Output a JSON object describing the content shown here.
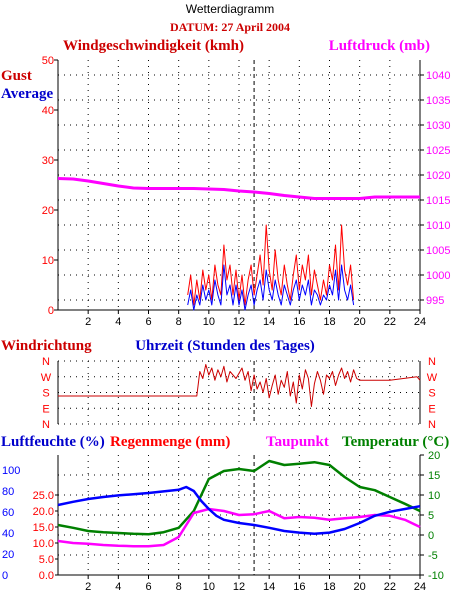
{
  "header": {
    "title": "Wetterdiagramm",
    "date": "DATUM: 27 April 2004"
  },
  "colors": {
    "red": "#ff0000",
    "blue": "#0000ff",
    "magenta": "#ff00ff",
    "green": "#008000",
    "darkred": "#cc0000",
    "axis": "#000000"
  },
  "chart_data": [
    {
      "type": "line",
      "title": "Windgeschwindigkeit (kmh)",
      "right_title": "Luftdruck (mb)",
      "legend": [
        "Gust",
        "Average"
      ],
      "xlabel": "",
      "x_range": [
        0,
        24
      ],
      "x_ticks": [
        "2",
        "4",
        "6",
        "8",
        "10",
        "12",
        "14",
        "16",
        "18",
        "20",
        "22",
        "24"
      ],
      "ylim": [
        0,
        50
      ],
      "y_ticks": [
        "0",
        "10",
        "20",
        "30",
        "40",
        "50"
      ],
      "y2lim": [
        993,
        1043
      ],
      "y2_ticks": [
        "995",
        "1000",
        "1005",
        "1010",
        "1015",
        "1020",
        "1025",
        "1030",
        "1035",
        "1040"
      ],
      "grid": "dotted",
      "marker_x": 13,
      "series": [
        {
          "name": "Gust",
          "axis": "left",
          "x": [
            8.6,
            8.8,
            9.0,
            9.2,
            9.4,
            9.6,
            9.8,
            10.0,
            10.2,
            10.4,
            10.6,
            10.8,
            11.0,
            11.2,
            11.4,
            11.6,
            11.8,
            12.0,
            12.2,
            12.4,
            12.6,
            12.8,
            13.0,
            13.2,
            13.4,
            13.6,
            13.8,
            14.0,
            14.2,
            14.4,
            14.6,
            14.8,
            15.0,
            15.2,
            15.4,
            15.6,
            15.8,
            16.0,
            16.2,
            16.4,
            16.6,
            16.8,
            17.0,
            17.2,
            17.4,
            17.6,
            17.8,
            18.0,
            18.2,
            18.4,
            18.6,
            18.8,
            19.0,
            19.2,
            19.4,
            19.6
          ],
          "values": [
            3,
            7,
            1,
            6,
            2,
            8,
            4,
            7,
            2,
            9,
            5,
            3,
            13,
            6,
            9,
            3,
            8,
            2,
            7,
            1,
            6,
            9,
            3,
            7,
            11,
            5,
            17,
            8,
            4,
            12,
            6,
            3,
            9,
            5,
            2,
            7,
            11,
            4,
            9,
            6,
            11,
            3,
            8,
            5,
            2,
            6,
            3,
            9,
            6,
            13,
            4,
            17,
            8,
            5,
            9,
            2
          ]
        },
        {
          "name": "Average",
          "axis": "left",
          "x": [
            8.6,
            8.8,
            9.0,
            9.2,
            9.4,
            9.6,
            9.8,
            10.0,
            10.2,
            10.4,
            10.6,
            10.8,
            11.0,
            11.2,
            11.4,
            11.6,
            11.8,
            12.0,
            12.2,
            12.4,
            12.6,
            12.8,
            13.0,
            13.2,
            13.4,
            13.6,
            13.8,
            14.0,
            14.2,
            14.4,
            14.6,
            14.8,
            15.0,
            15.2,
            15.4,
            15.6,
            15.8,
            16.0,
            16.2,
            16.4,
            16.6,
            16.8,
            17.0,
            17.2,
            17.4,
            17.6,
            17.8,
            18.0,
            18.2,
            18.4,
            18.6,
            18.8,
            19.0,
            19.2,
            19.4,
            19.6
          ],
          "values": [
            1,
            4,
            0,
            3,
            1,
            5,
            2,
            4,
            1,
            6,
            3,
            1,
            9,
            3,
            5,
            1,
            5,
            1,
            4,
            0,
            3,
            5,
            1,
            4,
            6,
            2,
            8,
            4,
            2,
            6,
            3,
            1,
            5,
            3,
            1,
            4,
            6,
            2,
            5,
            3,
            6,
            1,
            4,
            3,
            1,
            3,
            2,
            5,
            3,
            8,
            2,
            9,
            4,
            2,
            5,
            1
          ]
        },
        {
          "name": "Luftdruck",
          "axis": "right",
          "x": [
            0,
            1,
            2,
            3,
            4,
            5,
            6,
            7,
            8,
            9,
            10,
            11,
            12,
            13,
            14,
            15,
            16,
            17,
            18,
            19,
            20,
            21,
            22,
            23,
            24
          ],
          "values": [
            1019.3,
            1019.2,
            1018.8,
            1018.3,
            1017.8,
            1017.4,
            1017.3,
            1017.3,
            1017.3,
            1017.3,
            1017.2,
            1017.1,
            1016.8,
            1016.6,
            1016.3,
            1015.9,
            1015.6,
            1015.3,
            1015.3,
            1015.3,
            1015.3,
            1015.6,
            1015.6,
            1015.6,
            1015.6
          ]
        }
      ]
    },
    {
      "type": "line",
      "title": "Windrichtung",
      "xlabel": "Uhrzeit (Stunden des Tages)",
      "x_range": [
        0,
        24
      ],
      "y_categories": [
        "N",
        "E",
        "S",
        "W",
        "N"
      ],
      "y_values_deg": [
        0,
        90,
        180,
        270,
        360
      ],
      "grid": "dotted",
      "marker_x": 13,
      "series": [
        {
          "name": "Windrichtung",
          "x": [
            0,
            9.2,
            9.4,
            9.6,
            9.8,
            10.0,
            10.2,
            10.4,
            10.6,
            10.8,
            11.0,
            11.2,
            11.4,
            11.6,
            11.8,
            12.0,
            12.2,
            12.4,
            12.6,
            12.8,
            13.0,
            13.2,
            13.4,
            13.6,
            13.8,
            14.0,
            14.2,
            14.4,
            14.6,
            14.8,
            15.0,
            15.2,
            15.4,
            15.6,
            15.8,
            16.0,
            16.2,
            16.4,
            16.6,
            16.8,
            17.0,
            17.2,
            17.4,
            17.6,
            17.8,
            18.0,
            18.2,
            18.4,
            18.6,
            18.8,
            19.0,
            19.2,
            19.4,
            19.6,
            19.8,
            20.0,
            22.0,
            23.8,
            24.0
          ],
          "values": [
            160,
            160,
            300,
            260,
            340,
            280,
            320,
            250,
            310,
            270,
            330,
            240,
            300,
            280,
            260,
            290,
            320,
            250,
            300,
            190,
            280,
            200,
            240,
            180,
            260,
            150,
            220,
            280,
            170,
            250,
            210,
            300,
            160,
            240,
            120,
            280,
            200,
            310,
            260,
            100,
            230,
            300,
            250,
            170,
            280,
            260,
            300,
            220,
            280,
            320,
            260,
            300,
            240,
            310,
            260,
            250,
            250,
            270,
            250
          ]
        }
      ]
    },
    {
      "type": "line",
      "title": "Luftfeuchte (%)",
      "titles": [
        "Luftfeuchte (%)",
        "Regenmenge (mm)",
        "Taupunkt",
        "Temperatur (°C)"
      ],
      "x_range": [
        0,
        24
      ],
      "x_ticks": [
        "2",
        "4",
        "6",
        "8",
        "10",
        "12",
        "14",
        "16",
        "18",
        "20",
        "22",
        "24"
      ],
      "humidity_ticks": [
        "0",
        "20",
        "40",
        "60",
        "80",
        "100"
      ],
      "rain_ticks": [
        "0.0",
        "5.0",
        "10.0",
        "15.0",
        "20.0",
        "25.0"
      ],
      "temperature_ticks": [
        "-10",
        "-5",
        "0",
        "5",
        "10",
        "15",
        "20"
      ],
      "ylim": [
        -10,
        20
      ],
      "grid": "dotted",
      "marker_x": 13,
      "series": [
        {
          "name": "Luftfeuchte",
          "axis": "temperature",
          "x": [
            0,
            1,
            2,
            3,
            4,
            5,
            6,
            7,
            8,
            8.5,
            9,
            9.5,
            10,
            10.5,
            11,
            12,
            13,
            14,
            15,
            16,
            17,
            18,
            19,
            20,
            21,
            22,
            23,
            24
          ],
          "values": [
            7.5,
            8.3,
            9.0,
            9.5,
            9.9,
            10.2,
            10.5,
            10.9,
            11.3,
            12.0,
            11.0,
            8.5,
            6.5,
            4.8,
            3.8,
            3.0,
            2.5,
            1.8,
            1.0,
            0.6,
            0.3,
            0.6,
            1.5,
            3.0,
            4.8,
            5.8,
            6.5,
            7.2
          ]
        },
        {
          "name": "Temperatur",
          "axis": "temperature",
          "x": [
            0,
            1,
            2,
            3,
            4,
            5,
            6,
            7,
            8,
            9,
            10,
            11,
            12,
            13,
            14,
            15,
            16,
            17,
            18,
            19,
            20,
            21,
            22,
            23,
            24
          ],
          "values": [
            2.5,
            1.8,
            1.0,
            0.7,
            0.5,
            0.3,
            0.2,
            0.7,
            1.8,
            6.0,
            14.0,
            16.0,
            16.5,
            16.0,
            18.5,
            17.5,
            17.8,
            18.2,
            17.5,
            14.5,
            12.0,
            11.2,
            9.5,
            7.8,
            6.0
          ]
        },
        {
          "name": "Taupunkt",
          "axis": "temperature",
          "x": [
            0,
            1,
            2,
            3,
            4,
            5,
            6,
            7,
            8,
            9,
            10,
            11,
            12,
            13,
            14,
            15,
            16,
            17,
            18,
            19,
            20,
            21,
            22,
            23,
            24
          ],
          "values": [
            -1.5,
            -2.0,
            -2.2,
            -2.5,
            -2.7,
            -2.8,
            -2.8,
            -2.5,
            -0.5,
            5.5,
            6.5,
            6.0,
            5.0,
            5.2,
            6.0,
            4.2,
            4.5,
            4.3,
            3.8,
            4.2,
            4.5,
            5.0,
            4.8,
            3.8,
            2.0
          ]
        }
      ]
    }
  ]
}
